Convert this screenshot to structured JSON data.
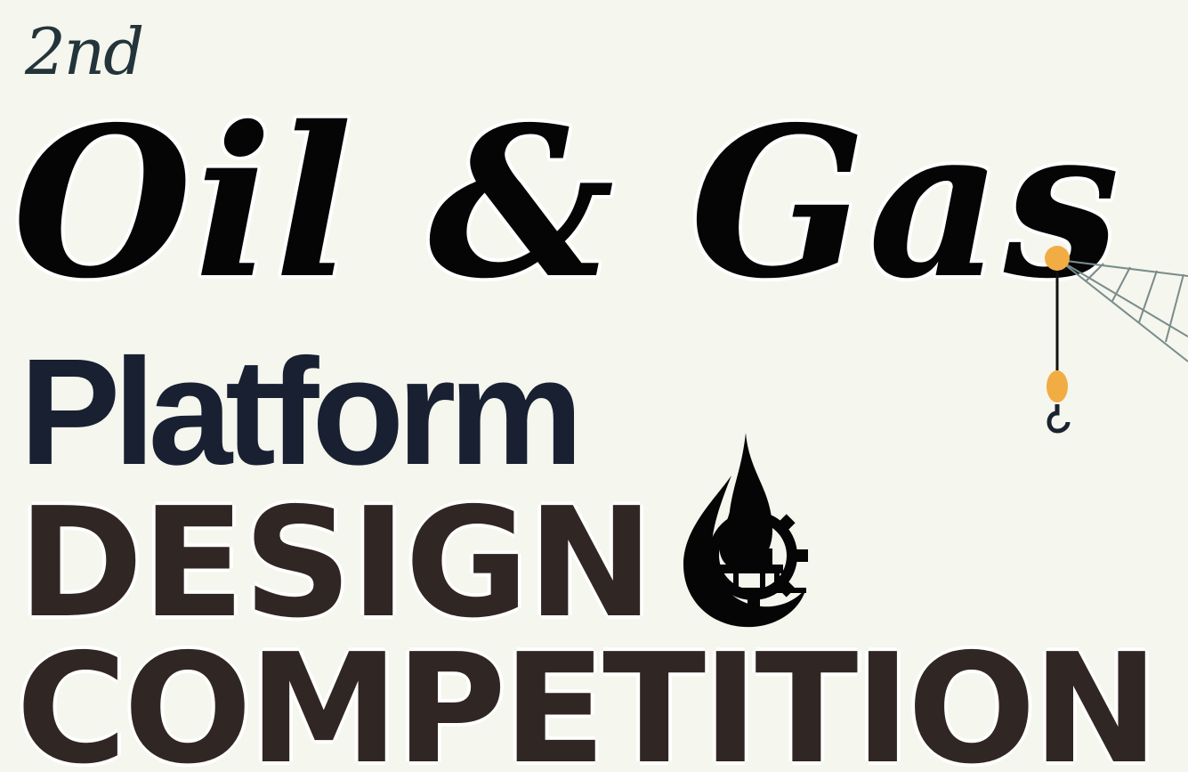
{
  "poster": {
    "ordinal": "2nd",
    "line1": "Oil & Gas",
    "line2": "Platform",
    "line3": "DESIGN",
    "line4": "COMPETITION"
  },
  "icons": {
    "emblem": "oil-drop-gear-platform-logo-icon",
    "crane": "crane-hook-icon"
  },
  "colors": {
    "background": "#f5f6ee",
    "script_title": "#050505",
    "platform": "#182032",
    "heavy_text": "#302624",
    "ordinal": "#23353a",
    "crane_accent": "#f1ad43"
  }
}
